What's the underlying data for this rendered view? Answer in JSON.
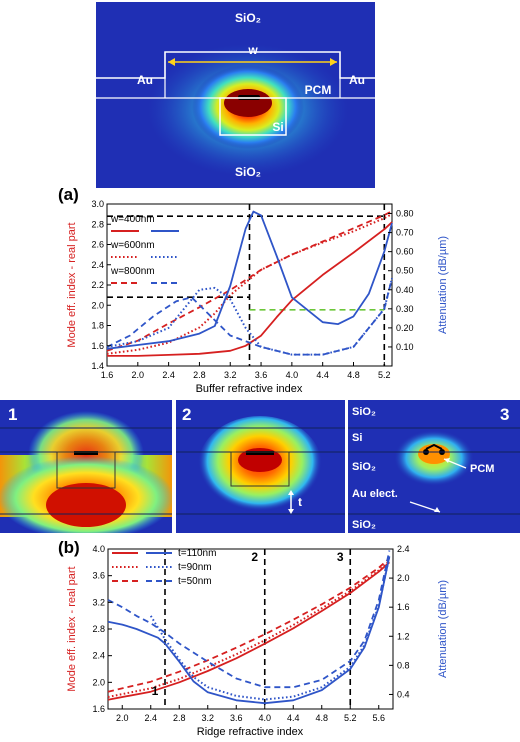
{
  "top_panel": {
    "labels": {
      "sio2_top": "SiO₂",
      "w": "w",
      "au_left": "Au",
      "au_right": "Au",
      "pcm": "PCM",
      "si": "Si",
      "sio2_bottom": "SiO₂"
    },
    "colors": {
      "background": "#1f2fb4",
      "line": "#ffffff",
      "arrow": "#ffd21a"
    }
  },
  "fields": [
    {
      "number": "1"
    },
    {
      "number": "2",
      "t_label": "t"
    },
    {
      "number": "3",
      "labels": {
        "sio2_top": "SiO₂",
        "si": "Si",
        "sio2_mid": "SiO₂",
        "pcm": "PCM",
        "au": "Au elect.",
        "sio2_bottom": "SiO₂"
      }
    }
  ],
  "chart_data": [
    {
      "panel": "(a)",
      "type": "line",
      "xlabel": "Buffer refractive index",
      "ylabel_left": "Mode eff. index - real part",
      "ylabel_right": "Attenuation (dB/µm)",
      "xlim": [
        1.6,
        5.3
      ],
      "ylim_left": [
        1.4,
        3.0
      ],
      "ylim_right": [
        0.0,
        0.85
      ],
      "xticks": [
        "1.6",
        "2.0",
        "2.4",
        "2.8",
        "3.2",
        "3.6",
        "4.0",
        "4.4",
        "4.8",
        "5.2"
      ],
      "yticks_left": [
        "1.4",
        "1.6",
        "1.8",
        "2.0",
        "2.2",
        "2.4",
        "2.6",
        "2.8",
        "3.0"
      ],
      "yticks_right": [
        "0.10",
        "0.20",
        "0.30",
        "0.40",
        "0.50",
        "0.60",
        "0.70",
        "0.80"
      ],
      "legend": [
        {
          "text": "w=400nm",
          "style": "solid"
        },
        {
          "text": "w=600nm",
          "style": "dotted"
        },
        {
          "text": "w=800nm",
          "style": "dashed"
        }
      ],
      "colors": {
        "left": "#d62020",
        "right": "#2f55c8",
        "guide": "#000000",
        "threshold": "#6cc63a"
      },
      "series": [
        {
          "axis": "left",
          "style": "solid",
          "x": [
            1.6,
            2.0,
            2.4,
            2.8,
            3.2,
            3.4,
            3.6,
            3.8,
            4.0,
            4.4,
            4.8,
            5.2,
            5.3
          ],
          "y": [
            1.5,
            1.5,
            1.51,
            1.52,
            1.55,
            1.6,
            1.7,
            1.88,
            2.05,
            2.3,
            2.52,
            2.75,
            2.82
          ]
        },
        {
          "axis": "left",
          "style": "dotted",
          "x": [
            1.6,
            2.0,
            2.4,
            2.8,
            3.0,
            3.2,
            3.6,
            4.0,
            4.4,
            4.8,
            5.2,
            5.3
          ],
          "y": [
            1.52,
            1.56,
            1.63,
            1.78,
            1.92,
            2.1,
            2.35,
            2.5,
            2.62,
            2.73,
            2.86,
            2.9
          ]
        },
        {
          "axis": "left",
          "style": "dashed",
          "x": [
            1.6,
            2.0,
            2.4,
            2.8,
            3.2,
            3.6,
            4.0,
            4.4,
            4.8,
            5.2,
            5.3
          ],
          "y": [
            1.55,
            1.65,
            1.82,
            1.98,
            2.15,
            2.35,
            2.5,
            2.63,
            2.76,
            2.89,
            2.93
          ]
        },
        {
          "axis": "right",
          "style": "solid",
          "x": [
            1.6,
            2.0,
            2.4,
            2.8,
            3.0,
            3.2,
            3.4,
            3.5,
            3.6,
            3.8,
            4.0,
            4.4,
            4.6,
            4.8,
            5.0,
            5.2,
            5.3
          ],
          "y": [
            0.09,
            0.11,
            0.13,
            0.17,
            0.21,
            0.42,
            0.72,
            0.81,
            0.79,
            0.58,
            0.36,
            0.23,
            0.22,
            0.26,
            0.38,
            0.6,
            0.75
          ]
        },
        {
          "axis": "right",
          "style": "dotted",
          "x": [
            1.6,
            2.0,
            2.4,
            2.6,
            2.8,
            3.0,
            3.2,
            3.4,
            3.6,
            4.0,
            4.4,
            4.8,
            5.2,
            5.3
          ],
          "y": [
            0.1,
            0.13,
            0.2,
            0.3,
            0.4,
            0.41,
            0.35,
            0.2,
            0.1,
            0.06,
            0.06,
            0.1,
            0.3,
            0.46
          ]
        },
        {
          "axis": "right",
          "style": "dashed",
          "x": [
            1.6,
            1.9,
            2.2,
            2.5,
            2.7,
            2.9,
            3.2,
            3.6,
            4.0,
            4.4,
            4.8,
            5.2,
            5.3
          ],
          "y": [
            0.1,
            0.16,
            0.26,
            0.34,
            0.36,
            0.28,
            0.16,
            0.1,
            0.06,
            0.06,
            0.1,
            0.3,
            0.46
          ]
        }
      ],
      "guides": [
        {
          "kind": "v",
          "x": 3.45
        },
        {
          "kind": "v",
          "x": 5.2
        },
        {
          "kind": "h",
          "axis": "left",
          "y": 2.88,
          "from": 1.6,
          "to": 5.2
        },
        {
          "kind": "h",
          "axis": "left",
          "y": 2.08,
          "from": 1.6,
          "to": 3.45
        },
        {
          "kind": "threshold",
          "axis": "right",
          "y": 0.295,
          "from": 3.45,
          "to": 5.2
        }
      ]
    },
    {
      "panel": "(b)",
      "type": "line",
      "xlabel": "Ridge refractive index",
      "ylabel_left": "Mode eff. index - real part",
      "ylabel_right": "Attenuation (dB/µm)",
      "xlim": [
        1.8,
        5.8
      ],
      "ylim_left": [
        1.6,
        4.0
      ],
      "ylim_right": [
        0.2,
        2.4
      ],
      "xticks": [
        "2.0",
        "2.4",
        "2.8",
        "3.2",
        "3.6",
        "4.0",
        "4.4",
        "4.8",
        "5.2",
        "5.6"
      ],
      "yticks_left": [
        "1.6",
        "2.0",
        "2.4",
        "2.8",
        "3.2",
        "3.6",
        "4.0"
      ],
      "yticks_right": [
        "0.4",
        "0.8",
        "1.2",
        "1.6",
        "2.0",
        "2.4"
      ],
      "legend": [
        {
          "text": "t=110nm",
          "style": "solid"
        },
        {
          "text": "t=90nm",
          "style": "dotted"
        },
        {
          "text": "t=50nm",
          "style": "dashed"
        }
      ],
      "markers": [
        {
          "text": "1",
          "x": 2.6
        },
        {
          "text": "2",
          "x": 4.0
        },
        {
          "text": "3",
          "x": 5.2
        }
      ],
      "colors": {
        "left": "#d62020",
        "right": "#2f55c8",
        "guide": "#000000"
      },
      "series": [
        {
          "axis": "left",
          "style": "solid",
          "x": [
            1.8,
            2.4,
            2.8,
            3.2,
            3.6,
            4.0,
            4.4,
            4.8,
            5.2,
            5.6,
            5.75
          ],
          "y": [
            1.74,
            1.86,
            2.0,
            2.17,
            2.36,
            2.58,
            2.81,
            3.07,
            3.34,
            3.66,
            3.8
          ]
        },
        {
          "axis": "left",
          "style": "dotted",
          "x": [
            1.8,
            2.4,
            2.8,
            3.2,
            3.6,
            4.0,
            4.4,
            4.8,
            5.2,
            5.6,
            5.75
          ],
          "y": [
            1.78,
            1.91,
            2.05,
            2.23,
            2.42,
            2.63,
            2.86,
            3.11,
            3.37,
            3.68,
            3.82
          ]
        },
        {
          "axis": "left",
          "style": "dashed",
          "x": [
            1.8,
            2.4,
            2.8,
            3.2,
            3.6,
            4.0,
            4.4,
            4.8,
            5.2,
            5.6,
            5.75
          ],
          "y": [
            1.86,
            2.01,
            2.16,
            2.33,
            2.52,
            2.72,
            2.94,
            3.17,
            3.42,
            3.72,
            3.86
          ]
        },
        {
          "axis": "right",
          "style": "solid",
          "x": [
            1.8,
            2.0,
            2.2,
            2.4,
            2.5,
            2.6,
            2.8,
            3.0,
            3.2,
            3.6,
            4.0,
            4.4,
            4.8,
            5.2,
            5.4,
            5.6,
            5.75
          ],
          "y": [
            1.4,
            1.36,
            1.3,
            1.22,
            1.18,
            1.1,
            0.85,
            0.58,
            0.43,
            0.32,
            0.28,
            0.32,
            0.46,
            0.75,
            1.05,
            1.6,
            2.3
          ]
        },
        {
          "axis": "right",
          "style": "dotted",
          "x": [
            2.4,
            2.5,
            2.6,
            2.8,
            3.0,
            3.2,
            3.6,
            4.0,
            4.4,
            4.8,
            5.2,
            5.4,
            5.6,
            5.75
          ],
          "y": [
            1.48,
            1.32,
            1.16,
            0.88,
            0.64,
            0.5,
            0.38,
            0.33,
            0.37,
            0.5,
            0.78,
            1.08,
            1.62,
            2.3
          ]
        },
        {
          "axis": "right",
          "style": "dashed",
          "x": [
            1.8,
            2.0,
            2.2,
            2.4,
            2.6,
            2.8,
            3.2,
            3.6,
            4.0,
            4.4,
            4.8,
            5.2,
            5.4,
            5.6,
            5.75
          ],
          "y": [
            1.7,
            1.6,
            1.48,
            1.38,
            1.25,
            1.1,
            0.85,
            0.62,
            0.5,
            0.5,
            0.6,
            0.86,
            1.14,
            1.7,
            2.38
          ]
        }
      ],
      "guides": [
        {
          "kind": "v",
          "x": 2.6
        },
        {
          "kind": "v",
          "x": 4.0
        },
        {
          "kind": "v",
          "x": 5.2
        }
      ]
    }
  ]
}
